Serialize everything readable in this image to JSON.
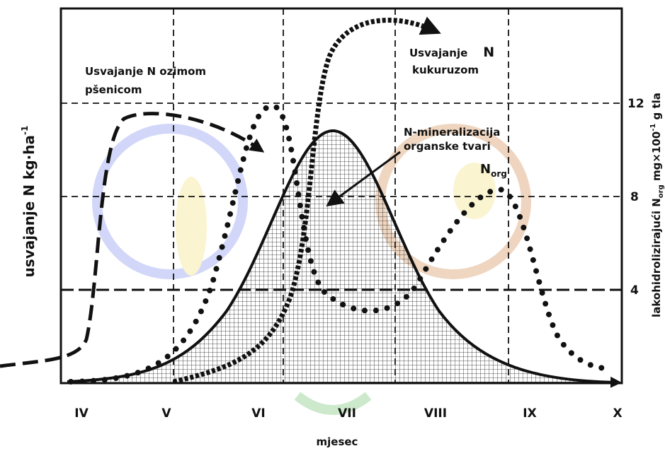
{
  "axes": {
    "x_label": "mjesec",
    "months": [
      "IV",
      "V",
      "VI",
      "VII",
      "VIII",
      "IX",
      "X"
    ],
    "y_left_label": "usvajanje N kg·ha",
    "y_left_sup": "-1",
    "y_right_label_parts": [
      "lakohidrolizirajući N",
      "org",
      " mg×100",
      "-1",
      " g tla"
    ],
    "y_right_ticks": [
      "12",
      "8",
      "4"
    ]
  },
  "annotations": {
    "wheat": [
      "Usvajanje N ozimom",
      "pšenicom"
    ],
    "maize": [
      "Usvajanje",
      "N",
      "kukuruzom"
    ],
    "mineralization": [
      "N-mineralizacija",
      "organske tvari"
    ],
    "norg": [
      "N",
      "org"
    ]
  }
}
